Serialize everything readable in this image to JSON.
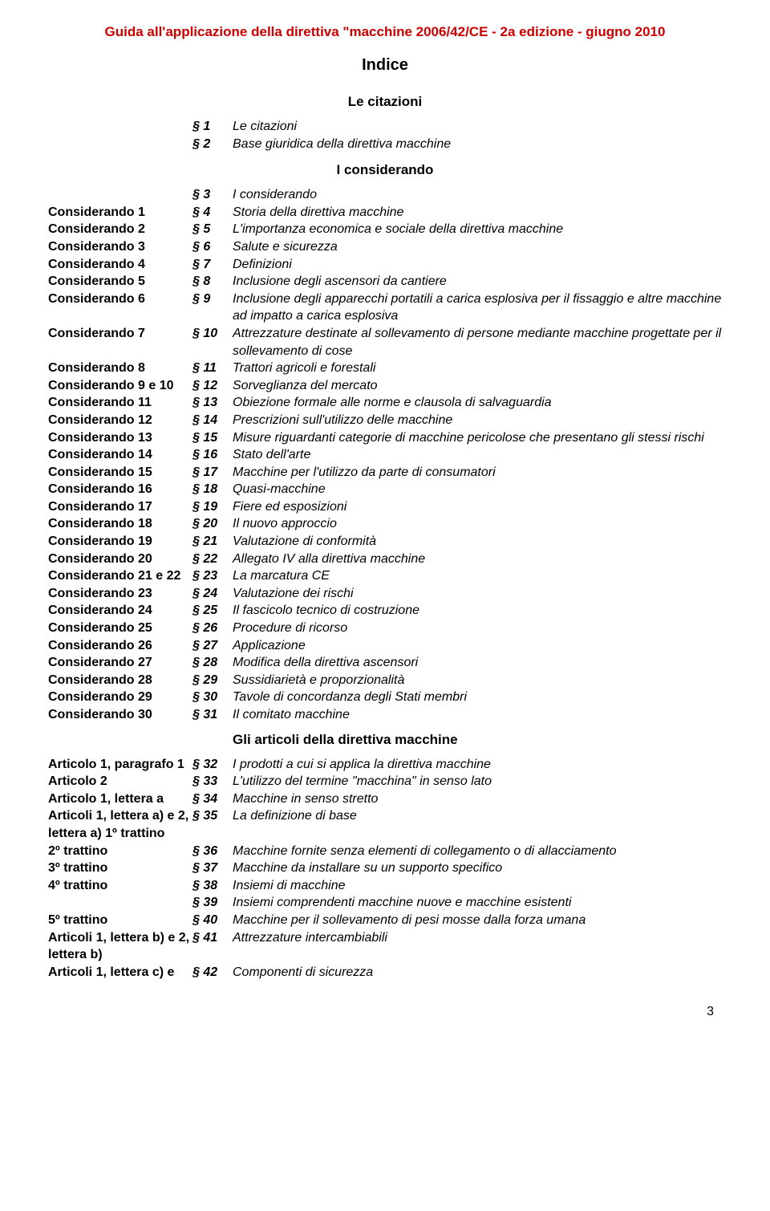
{
  "header": "Guida all'applicazione della direttiva \"macchine 2006/42/CE - 2a edizione - giugno 2010",
  "title": "Indice",
  "section1": "Le citazioni",
  "intro": [
    {
      "sec": "§ 1",
      "desc": "Le citazioni"
    },
    {
      "sec": "§ 2",
      "desc": "Base giuridica della direttiva macchine"
    }
  ],
  "section2": "I considerando",
  "toc1": [
    {
      "c1": "",
      "c2": "§ 3",
      "c3": "I considerando"
    },
    {
      "c1": "Considerando 1",
      "c2": "§ 4",
      "c3": "Storia della direttiva macchine"
    },
    {
      "c1": "Considerando 2",
      "c2": "§ 5",
      "c3": "L'importanza economica e sociale della direttiva macchine"
    },
    {
      "c1": "Considerando 3",
      "c2": "§ 6",
      "c3": "Salute e sicurezza"
    },
    {
      "c1": "Considerando 4",
      "c2": "§ 7",
      "c3": "Definizioni"
    },
    {
      "c1": "Considerando 5",
      "c2": "§ 8",
      "c3": "Inclusione degli ascensori da cantiere"
    },
    {
      "c1": "Considerando 6",
      "c2": "§ 9",
      "c3": "Inclusione degli apparecchi portatili a carica esplosiva per il fissaggio e altre macchine ad impatto a carica esplosiva"
    },
    {
      "c1": "Considerando 7",
      "c2": "§ 10",
      "c3": "Attrezzature destinate al sollevamento di persone mediante macchine progettate per il sollevamento di cose"
    },
    {
      "c1": "Considerando 8",
      "c2": "§ 11",
      "c3": "Trattori agricoli e forestali"
    },
    {
      "c1": "Considerando 9 e 10",
      "c2": "§ 12",
      "c3": "Sorveglianza del mercato"
    },
    {
      "c1": "Considerando 11",
      "c2": "§ 13",
      "c3": "Obiezione formale alle norme e clausola di salvaguardia"
    },
    {
      "c1": "Considerando 12",
      "c2": "§ 14",
      "c3": "Prescrizioni sull'utilizzo delle macchine"
    },
    {
      "c1": "Considerando 13",
      "c2": "§ 15",
      "c3": "Misure riguardanti categorie di macchine pericolose che presentano gli stessi rischi"
    },
    {
      "c1": "Considerando 14",
      "c2": "§ 16",
      "c3": "Stato dell'arte"
    },
    {
      "c1": "Considerando 15",
      "c2": "§ 17",
      "c3": "Macchine per l'utilizzo da parte di consumatori"
    },
    {
      "c1": "Considerando 16",
      "c2": "§ 18",
      "c3": "Quasi-macchine"
    },
    {
      "c1": "Considerando 17",
      "c2": "§ 19",
      "c3": "Fiere ed esposizioni"
    },
    {
      "c1": "Considerando 18",
      "c2": "§ 20",
      "c3": "Il nuovo approccio"
    },
    {
      "c1": "Considerando 19",
      "c2": "§ 21",
      "c3": "Valutazione di conformità"
    },
    {
      "c1": "Considerando 20",
      "c2": "§ 22",
      "c3": "Allegato IV alla direttiva macchine"
    },
    {
      "c1": "Considerando 21 e 22",
      "c2": "§ 23",
      "c3": "La marcatura CE"
    },
    {
      "c1": "Considerando 23",
      "c2": "§ 24",
      "c3": "Valutazione dei rischi"
    },
    {
      "c1": "Considerando 24",
      "c2": "§ 25",
      "c3": "Il fascicolo tecnico di costruzione"
    },
    {
      "c1": "Considerando 25",
      "c2": "§ 26",
      "c3": "Procedure di ricorso"
    },
    {
      "c1": "Considerando 26",
      "c2": "§ 27",
      "c3": "Applicazione"
    },
    {
      "c1": "Considerando 27",
      "c2": "§ 28",
      "c3": "Modifica della direttiva ascensori"
    },
    {
      "c1": "Considerando 28",
      "c2": "§ 29",
      "c3": "Sussidiarietà e proporzionalità"
    },
    {
      "c1": "Considerando 29",
      "c2": "§ 30",
      "c3": "Tavole di concordanza degli Stati membri"
    },
    {
      "c1": "Considerando 30",
      "c2": "§ 31",
      "c3": "Il comitato macchine"
    }
  ],
  "section3": "Gli articoli della direttiva macchine",
  "toc2": [
    {
      "c1": "Articolo 1, paragrafo 1",
      "c2": "§ 32",
      "c3": "I prodotti a cui si applica la direttiva macchine"
    },
    {
      "c1": "Articolo 2",
      "c2": "§ 33",
      "c3": "L'utilizzo del termine \"macchina\" in senso lato"
    },
    {
      "c1": "Articolo 1, lettera a",
      "c2": "§ 34",
      "c3": "Macchine in senso stretto"
    },
    {
      "c1": "Articoli 1, lettera a) e 2, lettera a) 1º trattino",
      "c2": "§ 35",
      "c3": "La definizione di base"
    },
    {
      "c1": "2º trattino",
      "c2": "§ 36",
      "c3": "Macchine fornite senza elementi di collegamento o di allacciamento"
    },
    {
      "c1": "3º trattino",
      "c2": "§ 37",
      "c3": "Macchine da installare su un supporto specifico"
    },
    {
      "c1": "4º trattino",
      "c2": "§ 38",
      "c3": "Insiemi di macchine"
    },
    {
      "c1": "",
      "c2": "§ 39",
      "c3": "Insiemi comprendenti macchine nuove e macchine esistenti"
    },
    {
      "c1": "5º trattino",
      "c2": "§ 40",
      "c3": "Macchine per il sollevamento di pesi mosse dalla forza umana"
    },
    {
      "c1": "Articoli 1, lettera b) e 2, lettera b)",
      "c2": "§ 41",
      "c3": "Attrezzature intercambiabili"
    },
    {
      "c1": "Articoli 1, lettera c) e",
      "c2": "§ 42",
      "c3": "Componenti di sicurezza"
    }
  ],
  "pageNumber": "3"
}
